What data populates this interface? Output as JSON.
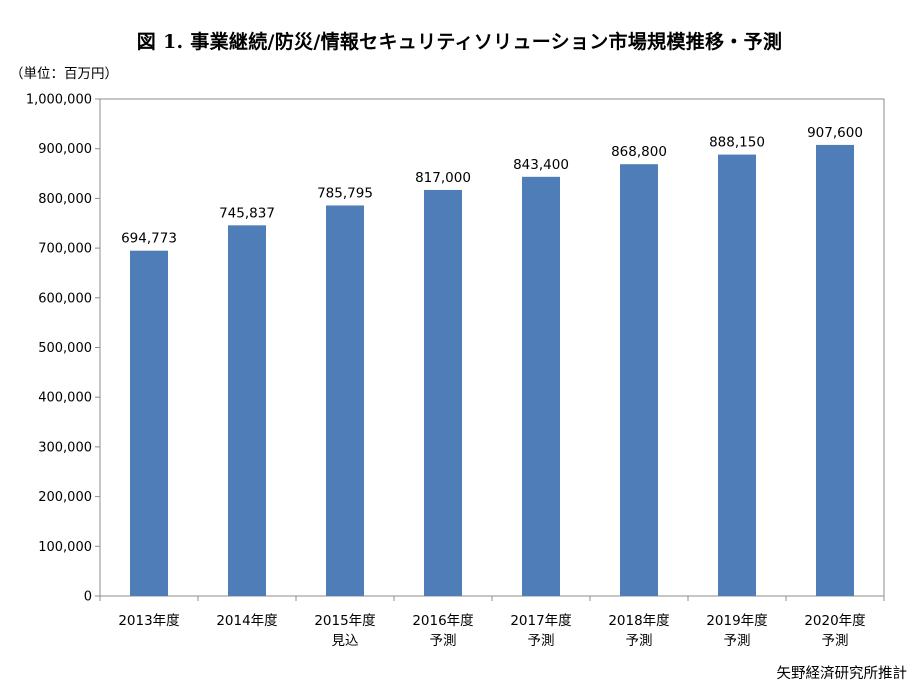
{
  "chart_data": {
    "type": "bar",
    "title": "図 1. 事業継続/防災/情報セキュリティソリューション市場規模推移・予測",
    "unit_label": "（単位：百万円）",
    "source": "矢野経済研究所推計",
    "categories": [
      [
        "2013年度"
      ],
      [
        "2014年度"
      ],
      [
        "2015年度",
        "見込"
      ],
      [
        "2016年度",
        "予測"
      ],
      [
        "2017年度",
        "予測"
      ],
      [
        "2018年度",
        "予測"
      ],
      [
        "2019年度",
        "予測"
      ],
      [
        "2020年度",
        "予測"
      ]
    ],
    "values": [
      694773,
      745837,
      785795,
      817000,
      843400,
      868800,
      888150,
      907600
    ],
    "data_labels": [
      "694,773",
      "745,837",
      "785,795",
      "817,000",
      "843,400",
      "868,800",
      "888,150",
      "907,600"
    ],
    "ylim": [
      0,
      1000000
    ],
    "yticks": [
      0,
      100000,
      200000,
      300000,
      400000,
      500000,
      600000,
      700000,
      800000,
      900000,
      1000000
    ],
    "ytick_labels": [
      "0",
      "100,000",
      "200,000",
      "300,000",
      "400,000",
      "500,000",
      "600,000",
      "700,000",
      "800,000",
      "900,000",
      "1,000,000"
    ],
    "grid": false,
    "legend": "none",
    "bar_color": "#4f7db8"
  }
}
